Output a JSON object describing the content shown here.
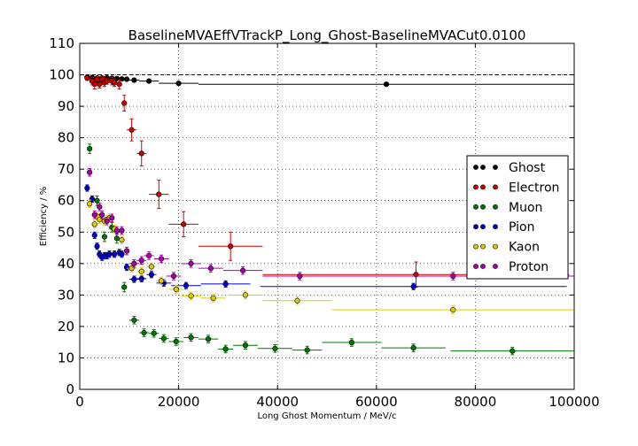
{
  "chart_data": {
    "type": "scatter",
    "title": "BaselineMVAEffVTrackP_Long_Ghost-BaselineMVACut0.0100",
    "xlabel": "Long Ghost Momentum / MeV/c",
    "ylabel": "Efficiency / %",
    "xlim": [
      0,
      100000
    ],
    "ylim": [
      0,
      110
    ],
    "xticks": [
      0,
      20000,
      40000,
      60000,
      80000,
      100000
    ],
    "yticks": [
      0,
      10,
      20,
      30,
      40,
      50,
      60,
      70,
      80,
      90,
      100,
      110
    ],
    "xtick_labels": [
      "0",
      "20000",
      "40000",
      "60000",
      "80000",
      "100000"
    ],
    "ytick_labels": [
      "0",
      "10",
      "20",
      "30",
      "40",
      "50",
      "60",
      "70",
      "80",
      "90",
      "100",
      "110"
    ],
    "grid": true,
    "reference_line": 100,
    "legend_position": "right",
    "series": [
      {
        "name": "Ghost",
        "color": "#000000",
        "points": [
          [
            1500,
            99.3,
            500,
            0.3
          ],
          [
            2500,
            99.1,
            500,
            0.3
          ],
          [
            3500,
            99.0,
            500,
            0.3
          ],
          [
            4500,
            99.0,
            500,
            0.3
          ],
          [
            5500,
            99.0,
            500,
            0.3
          ],
          [
            6500,
            98.9,
            500,
            0.3
          ],
          [
            7500,
            98.8,
            500,
            0.4
          ],
          [
            8500,
            98.7,
            500,
            0.4
          ],
          [
            9500,
            98.6,
            500,
            0.4
          ],
          [
            11000,
            98.3,
            1000,
            0.4
          ],
          [
            14000,
            98.0,
            2000,
            0.5
          ],
          [
            20000,
            97.3,
            4000,
            0.5
          ],
          [
            62000,
            97.0,
            38000,
            0.5
          ]
        ]
      },
      {
        "name": "Electron",
        "color": "#cc0000",
        "points": [
          [
            1500,
            99.0,
            500,
            0.8
          ],
          [
            2500,
            98.0,
            500,
            1.2
          ],
          [
            3000,
            97.0,
            500,
            1.5
          ],
          [
            3500,
            98.5,
            500,
            1.0
          ],
          [
            4000,
            97.0,
            500,
            1.2
          ],
          [
            4500,
            98.5,
            500,
            1.0
          ],
          [
            5000,
            97.5,
            500,
            1.2
          ],
          [
            5500,
            98.0,
            500,
            1.0
          ],
          [
            6500,
            98.0,
            500,
            1.2
          ],
          [
            7000,
            97.5,
            500,
            1.2
          ],
          [
            8000,
            97.0,
            500,
            1.5
          ],
          [
            9000,
            91.0,
            500,
            2.5
          ],
          [
            10500,
            82.5,
            1000,
            3.5
          ],
          [
            12500,
            75.0,
            1000,
            4.0
          ],
          [
            16000,
            62.0,
            2000,
            4.5
          ],
          [
            21000,
            52.5,
            3000,
            4.0
          ],
          [
            30500,
            45.5,
            6500,
            4.5
          ],
          [
            68000,
            36.5,
            31000,
            4.0
          ]
        ]
      },
      {
        "name": "Muon",
        "color": "#007700",
        "points": [
          [
            2000,
            76.5,
            500,
            1.5
          ],
          [
            3500,
            60.0,
            500,
            1.5
          ],
          [
            5000,
            48.5,
            500,
            1.5
          ],
          [
            6500,
            51.5,
            500,
            1.5
          ],
          [
            7500,
            48.0,
            500,
            1.5
          ],
          [
            9000,
            32.5,
            500,
            1.5
          ],
          [
            11000,
            22.0,
            1000,
            1.2
          ],
          [
            13000,
            18.0,
            1000,
            1.2
          ],
          [
            15000,
            17.8,
            1000,
            1.2
          ],
          [
            17000,
            16.2,
            1000,
            1.2
          ],
          [
            19500,
            15.2,
            1500,
            1.2
          ],
          [
            22500,
            16.5,
            1500,
            1.2
          ],
          [
            26000,
            16.0,
            2000,
            1.2
          ],
          [
            29500,
            12.8,
            1500,
            1.2
          ],
          [
            33500,
            14.0,
            2500,
            1.2
          ],
          [
            39500,
            13.0,
            3500,
            1.2
          ],
          [
            46000,
            12.5,
            3000,
            1.2
          ],
          [
            55000,
            14.9,
            6000,
            1.2
          ],
          [
            67500,
            13.2,
            6500,
            1.2
          ],
          [
            87500,
            12.2,
            12500,
            1.2
          ]
        ]
      },
      {
        "name": "Pion",
        "color": "#0000cc",
        "points": [
          [
            1500,
            64.0,
            500,
            1.0
          ],
          [
            2500,
            60.5,
            500,
            1.0
          ],
          [
            3000,
            49.0,
            500,
            1.0
          ],
          [
            3500,
            45.5,
            500,
            1.0
          ],
          [
            4000,
            43.0,
            500,
            1.0
          ],
          [
            4500,
            42.0,
            500,
            1.0
          ],
          [
            5000,
            42.5,
            500,
            1.0
          ],
          [
            5500,
            42.5,
            500,
            1.0
          ],
          [
            6000,
            43.0,
            500,
            1.0
          ],
          [
            7000,
            43.0,
            500,
            1.0
          ],
          [
            8000,
            43.5,
            500,
            1.0
          ],
          [
            8500,
            43.0,
            500,
            1.0
          ],
          [
            9500,
            38.8,
            500,
            1.0
          ],
          [
            11000,
            35.0,
            1000,
            1.0
          ],
          [
            12500,
            35.2,
            1000,
            1.0
          ],
          [
            14500,
            36.5,
            1000,
            1.0
          ],
          [
            17000,
            33.8,
            1500,
            1.0
          ],
          [
            21500,
            33.0,
            3000,
            1.0
          ],
          [
            29500,
            33.5,
            5000,
            1.0
          ],
          [
            67500,
            32.7,
            31000,
            1.0
          ]
        ]
      },
      {
        "name": "Kaon",
        "color": "#ddcc00",
        "points": [
          [
            2000,
            59.0,
            500,
            1.2
          ],
          [
            3000,
            52.5,
            500,
            1.2
          ],
          [
            3500,
            55.0,
            500,
            1.2
          ],
          [
            4000,
            54.0,
            500,
            1.2
          ],
          [
            5000,
            53.5,
            500,
            1.2
          ],
          [
            5500,
            54.0,
            500,
            1.2
          ],
          [
            6000,
            54.5,
            500,
            1.2
          ],
          [
            7000,
            51.0,
            500,
            1.2
          ],
          [
            8500,
            47.5,
            500,
            1.2
          ],
          [
            10500,
            38.5,
            1000,
            1.2
          ],
          [
            12500,
            37.5,
            1000,
            1.2
          ],
          [
            14500,
            39.0,
            1000,
            1.2
          ],
          [
            16500,
            34.5,
            1000,
            1.2
          ],
          [
            19500,
            31.8,
            1500,
            1.2
          ],
          [
            22500,
            29.7,
            2000,
            1.2
          ],
          [
            27000,
            29.0,
            2500,
            1.2
          ],
          [
            33500,
            30.0,
            3500,
            1.2
          ],
          [
            44000,
            28.2,
            7000,
            1.2
          ],
          [
            75500,
            25.3,
            24500,
            1.2
          ]
        ]
      },
      {
        "name": "Proton",
        "color": "#aa00aa",
        "points": [
          [
            2000,
            69.0,
            500,
            1.2
          ],
          [
            3000,
            55.5,
            500,
            1.2
          ],
          [
            4000,
            58.0,
            500,
            1.2
          ],
          [
            4500,
            55.5,
            500,
            1.2
          ],
          [
            5500,
            53.5,
            500,
            1.2
          ],
          [
            6500,
            54.5,
            500,
            1.2
          ],
          [
            7500,
            50.5,
            500,
            1.2
          ],
          [
            8500,
            50.5,
            500,
            1.2
          ],
          [
            9500,
            44.0,
            500,
            1.2
          ],
          [
            11000,
            40.0,
            1000,
            1.2
          ],
          [
            12500,
            41.0,
            1000,
            1.2
          ],
          [
            14000,
            42.5,
            1000,
            1.2
          ],
          [
            16500,
            41.5,
            1500,
            1.2
          ],
          [
            19000,
            36.0,
            1500,
            1.2
          ],
          [
            22500,
            40.0,
            2000,
            1.2
          ],
          [
            26500,
            38.5,
            2500,
            1.2
          ],
          [
            33000,
            37.8,
            4000,
            1.2
          ],
          [
            44500,
            36.0,
            7500,
            1.2
          ],
          [
            75500,
            36.0,
            24500,
            1.2
          ]
        ]
      }
    ]
  }
}
